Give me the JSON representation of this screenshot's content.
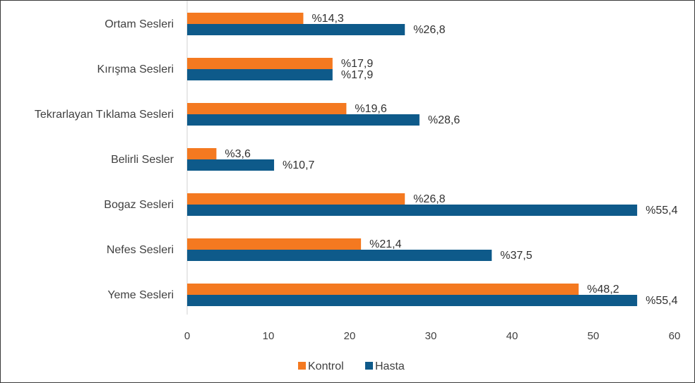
{
  "chart_data": {
    "type": "bar",
    "orientation": "horizontal",
    "categories": [
      "Ortam Sesleri",
      "Kırışma Sesleri",
      "Tekrarlayan Tıklama Sesleri",
      "Belirli Sesler",
      "Bogaz Sesleri",
      "Nefes Sesleri",
      "Yeme Sesleri"
    ],
    "series": [
      {
        "name": "Kontrol",
        "color": "#F47920",
        "values": [
          14.3,
          17.9,
          19.6,
          3.6,
          26.8,
          21.4,
          48.2
        ],
        "labels": [
          "%14,3",
          "%17,9",
          "%19,6",
          "%3,6",
          "%26,8",
          "%21,4",
          "%48,2"
        ]
      },
      {
        "name": "Hasta",
        "color": "#0E5A8A",
        "values": [
          26.8,
          17.9,
          28.6,
          10.7,
          55.4,
          37.5,
          55.4
        ],
        "labels": [
          "%26,8",
          "%17,9",
          "%28,6",
          "%10,7",
          "%55,4",
          "%37,5",
          "%55,4"
        ]
      }
    ],
    "xlim": [
      0,
      60
    ],
    "xticks": [
      "0",
      "10",
      "20",
      "30",
      "40",
      "50",
      "60"
    ],
    "grid": false,
    "legend_position": "bottom",
    "title": "",
    "xlabel": "",
    "ylabel": ""
  }
}
